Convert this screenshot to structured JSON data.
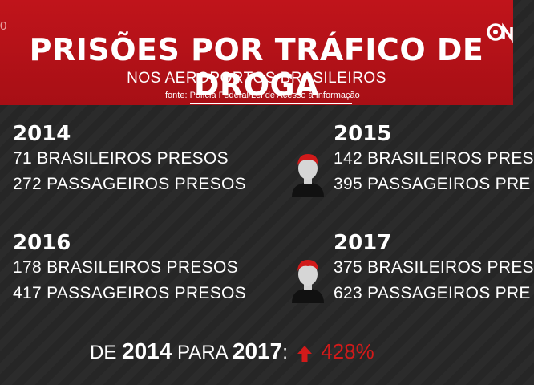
{
  "header": {
    "corner_num": "0",
    "title": "PRISÕES POR TRÁFICO DE DROGA",
    "subtitle": "NOS AEROPORTOS BRASILEIROS",
    "source": "fonte: Polícia Federal/Lei de Acesso à Informação",
    "brand_color": "#b01218"
  },
  "blocks": [
    {
      "year": "2014",
      "line1": "71 BRASILEIROS PRESOS",
      "line2": "272 PASSAGEIROS PRESOS"
    },
    {
      "year": "2015",
      "line1": "142 BRASILEIROS PRES",
      "line2": "395 PASSAGEIROS PRE"
    },
    {
      "year": "2016",
      "line1": "178 BRASILEIROS PRESOS",
      "line2": "417 PASSAGEIROS PRESOS"
    },
    {
      "year": "2017",
      "line1": "375 BRASILEIROS PRES",
      "line2": "623 PASSAGEIROS PRE"
    }
  ],
  "footer": {
    "de": "DE",
    "from_year": "2014",
    "para": "PARA",
    "to_year": "2017",
    "colon": ":",
    "increase": "428%",
    "arrow_icon": "up-arrow-icon",
    "accent_color": "#d11a1a"
  }
}
